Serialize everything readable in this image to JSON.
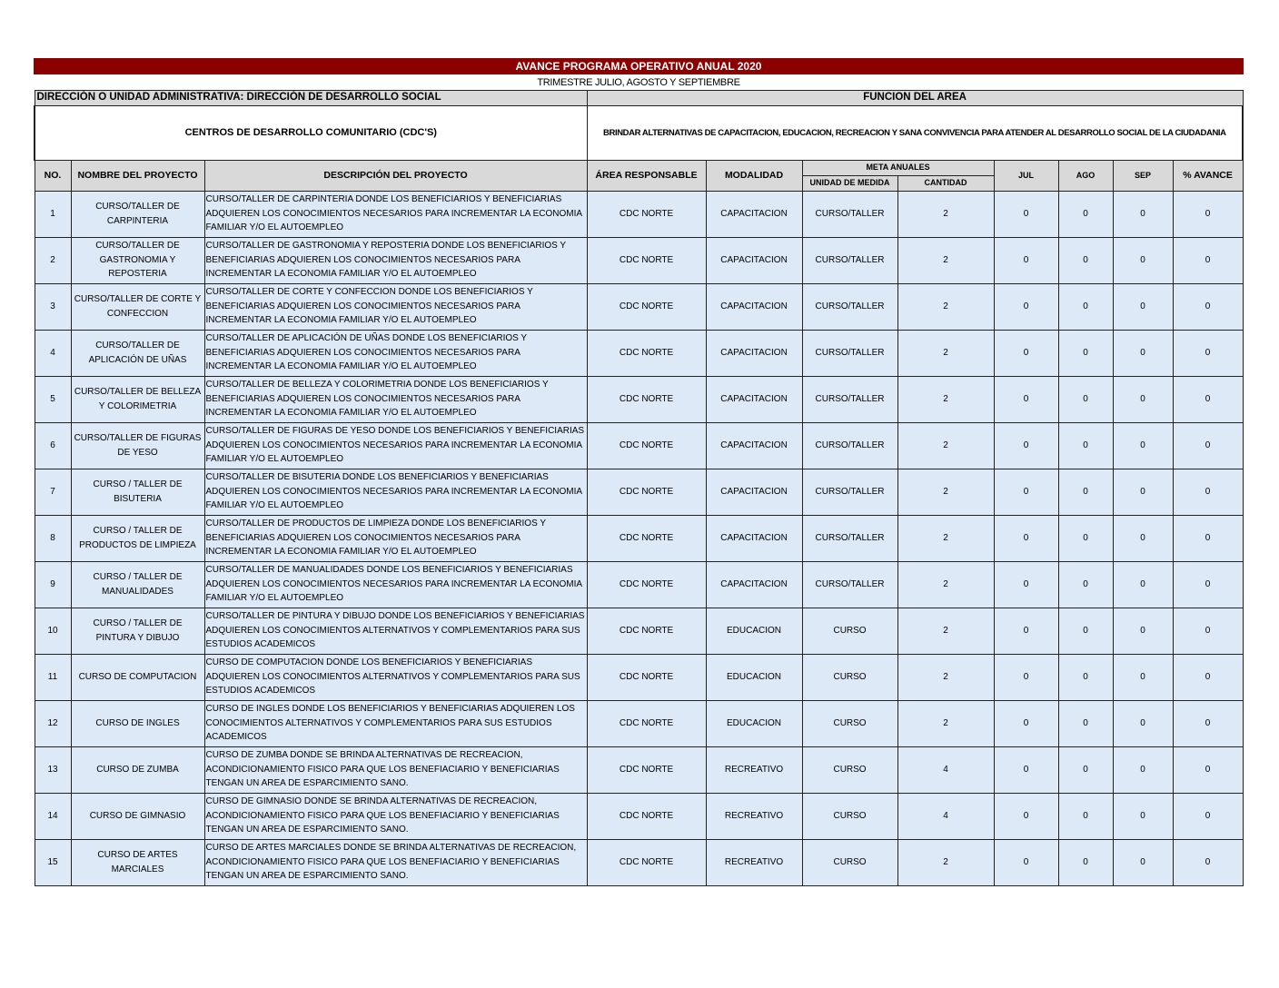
{
  "header": {
    "title": "AVANCE PROGRAMA OPERATIVO ANUAL 2020",
    "subtitle": "TRIMESTRE JULIO, AGOSTO Y SEPTIEMBRE",
    "direccion": "DIRECCIÓN O UNIDAD ADMINISTRATIVA: DIRECCIÓN DE DESARROLLO SOCIAL",
    "funcion_label": "FUNCION DEL AREA",
    "unidad": "CENTROS DE DESARROLLO COMUNITARIO (CDC'S)",
    "funcion": "BRINDAR ALTERNATIVAS DE CAPACITACION, EDUCACION, RECREACION Y SANA CONVIVENCIA PARA ATENDER AL DESARROLLO SOCIAL DE LA CIUDADANIA"
  },
  "columns": {
    "no": "NO.",
    "nombre": "NOMBRE DEL PROYECTO",
    "descripcion": "DESCRIPCIÓN DEL PROYECTO",
    "area": "ÁREA RESPONSABLE",
    "modalidad": "MODALIDAD",
    "meta": "META ANUALES",
    "unidad": "UNIDAD DE MEDIDA",
    "cantidad": "CANTIDAD",
    "jul": "JUL",
    "ago": "AGO",
    "sep": "SEP",
    "avance": "% AVANCE"
  },
  "rows": [
    [
      "1",
      "CURSO/TALLER DE CARPINTERIA",
      "CURSO/TALLER DE CARPINTERIA DONDE LOS BENEFICIARIOS Y BENEFICIARIAS ADQUIEREN LOS CONOCIMIENTOS NECESARIOS PARA INCREMENTAR LA ECONOMIA FAMILIAR Y/O EL AUTOEMPLEO",
      "CDC NORTE",
      "CAPACITACION",
      "CURSO/TALLER",
      "2",
      "0",
      "0",
      "0",
      "0"
    ],
    [
      "2",
      "CURSO/TALLER DE GASTRONOMIA Y REPOSTERIA",
      "CURSO/TALLER DE GASTRONOMIA Y REPOSTERIA DONDE LOS BENEFICIARIOS Y BENEFICIARIAS ADQUIEREN LOS CONOCIMIENTOS NECESARIOS PARA INCREMENTAR LA ECONOMIA FAMILIAR Y/O EL AUTOEMPLEO",
      "CDC NORTE",
      "CAPACITACION",
      "CURSO/TALLER",
      "2",
      "0",
      "0",
      "0",
      "0"
    ],
    [
      "3",
      "CURSO/TALLER DE CORTE Y CONFECCION",
      "CURSO/TALLER DE CORTE Y CONFECCION DONDE LOS BENEFICIARIOS Y BENEFICIARIAS ADQUIEREN LOS CONOCIMIENTOS NECESARIOS PARA INCREMENTAR LA ECONOMIA FAMILIAR Y/O EL AUTOEMPLEO",
      "CDC NORTE",
      "CAPACITACION",
      "CURSO/TALLER",
      "2",
      "0",
      "0",
      "0",
      "0"
    ],
    [
      "4",
      "CURSO/TALLER DE APLICACIÓN DE UÑAS",
      "CURSO/TALLER DE APLICACIÓN DE UÑAS DONDE LOS BENEFICIARIOS Y BENEFICIARIAS ADQUIEREN LOS CONOCIMIENTOS NECESARIOS PARA INCREMENTAR LA ECONOMIA FAMILIAR Y/O EL AUTOEMPLEO",
      "CDC NORTE",
      "CAPACITACION",
      "CURSO/TALLER",
      "2",
      "0",
      "0",
      "0",
      "0"
    ],
    [
      "5",
      "CURSO/TALLER DE BELLEZA Y COLORIMETRIA",
      "CURSO/TALLER DE BELLEZA Y COLORIMETRIA DONDE LOS BENEFICIARIOS Y BENEFICIARIAS ADQUIEREN LOS CONOCIMIENTOS NECESARIOS PARA INCREMENTAR LA ECONOMIA FAMILIAR Y/O EL AUTOEMPLEO",
      "CDC NORTE",
      "CAPACITACION",
      "CURSO/TALLER",
      "2",
      "0",
      "0",
      "0",
      "0"
    ],
    [
      "6",
      "CURSO/TALLER DE FIGURAS DE YESO",
      "CURSO/TALLER DE FIGURAS DE YESO DONDE LOS BENEFICIARIOS Y BENEFICIARIAS ADQUIEREN LOS CONOCIMIENTOS NECESARIOS PARA INCREMENTAR LA ECONOMIA FAMILIAR Y/O EL AUTOEMPLEO",
      "CDC NORTE",
      "CAPACITACION",
      "CURSO/TALLER",
      "2",
      "0",
      "0",
      "0",
      "0"
    ],
    [
      "7",
      "CURSO / TALLER DE BISUTERIA",
      "CURSO/TALLER DE BISUTERIA DONDE LOS BENEFICIARIOS Y BENEFICIARIAS ADQUIEREN LOS CONOCIMIENTOS NECESARIOS PARA INCREMENTAR LA ECONOMIA FAMILIAR Y/O EL AUTOEMPLEO",
      "CDC NORTE",
      "CAPACITACION",
      "CURSO/TALLER",
      "2",
      "0",
      "0",
      "0",
      "0"
    ],
    [
      "8",
      "CURSO / TALLER DE PRODUCTOS DE LIMPIEZA",
      "CURSO/TALLER DE PRODUCTOS DE LIMPIEZA DONDE LOS BENEFICIARIOS Y BENEFICIARIAS ADQUIEREN LOS CONOCIMIENTOS NECESARIOS PARA INCREMENTAR LA ECONOMIA FAMILIAR Y/O EL AUTOEMPLEO",
      "CDC NORTE",
      "CAPACITACION",
      "CURSO/TALLER",
      "2",
      "0",
      "0",
      "0",
      "0"
    ],
    [
      "9",
      "CURSO / TALLER DE MANUALIDADES",
      "CURSO/TALLER DE MANUALIDADES DONDE LOS BENEFICIARIOS Y BENEFICIARIAS ADQUIEREN LOS CONOCIMIENTOS NECESARIOS PARA INCREMENTAR LA ECONOMIA FAMILIAR Y/O EL AUTOEMPLEO",
      "CDC NORTE",
      "CAPACITACION",
      "CURSO/TALLER",
      "2",
      "0",
      "0",
      "0",
      "0"
    ],
    [
      "10",
      "CURSO / TALLER DE PINTURA Y DIBUJO",
      "CURSO/TALLER DE PINTURA Y DIBUJO DONDE LOS BENEFICIARIOS Y BENEFICIARIAS ADQUIEREN LOS CONOCIMIENTOS ALTERNATIVOS Y COMPLEMENTARIOS PARA SUS ESTUDIOS ACADEMICOS",
      "CDC NORTE",
      "EDUCACION",
      "CURSO",
      "2",
      "0",
      "0",
      "0",
      "0"
    ],
    [
      "11",
      "CURSO DE COMPUTACION",
      "CURSO DE COMPUTACION DONDE LOS BENEFICIARIOS Y BENEFICIARIAS ADQUIEREN LOS CONOCIMIENTOS ALTERNATIVOS Y COMPLEMENTARIOS PARA SUS ESTUDIOS ACADEMICOS",
      "CDC NORTE",
      "EDUCACION",
      "CURSO",
      "2",
      "0",
      "0",
      "0",
      "0"
    ],
    [
      "12",
      "CURSO DE INGLES",
      "CURSO DE INGLES DONDE LOS BENEFICIARIOS Y BENEFICIARIAS ADQUIEREN LOS CONOCIMIENTOS ALTERNATIVOS Y COMPLEMENTARIOS PARA SUS ESTUDIOS ACADEMICOS",
      "CDC NORTE",
      "EDUCACION",
      "CURSO",
      "2",
      "0",
      "0",
      "0",
      "0"
    ],
    [
      "13",
      "CURSO DE ZUMBA",
      "CURSO DE ZUMBA DONDE SE BRINDA ALTERNATIVAS DE RECREACION, ACONDICIONAMIENTO FISICO PARA QUE LOS BENEFIACIARIO Y BENEFICIARIAS TENGAN UN AREA DE ESPARCIMIENTO SANO.",
      "CDC NORTE",
      "RECREATIVO",
      "CURSO",
      "4",
      "0",
      "0",
      "0",
      "0"
    ],
    [
      "14",
      "CURSO DE GIMNASIO",
      "CURSO DE GIMNASIO DONDE SE BRINDA ALTERNATIVAS DE RECREACION, ACONDICIONAMIENTO FISICO PARA QUE LOS BENEFIACIARIO Y BENEFICIARIAS TENGAN UN AREA DE ESPARCIMIENTO SANO.",
      "CDC NORTE",
      "RECREATIVO",
      "CURSO",
      "4",
      "0",
      "0",
      "0",
      "0"
    ],
    [
      "15",
      "CURSO DE ARTES MARCIALES",
      "CURSO DE ARTES MARCIALES DONDE SE BRINDA ALTERNATIVAS DE RECREACION, ACONDICIONAMIENTO FISICO PARA QUE LOS BENEFIACIARIO Y BENEFICIARIAS TENGAN UN AREA DE ESPARCIMIENTO SANO.",
      "CDC NORTE",
      "RECREATIVO",
      "CURSO",
      "2",
      "0",
      "0",
      "0",
      "0"
    ]
  ]
}
